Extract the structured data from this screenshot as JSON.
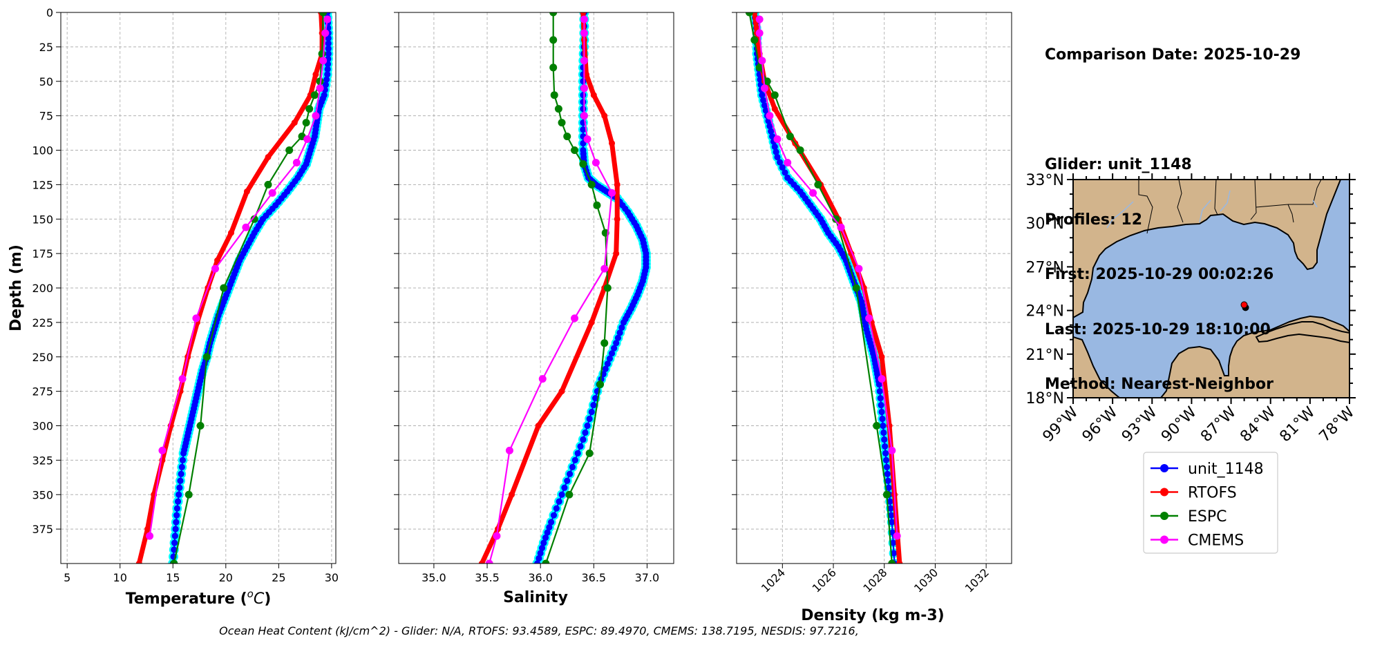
{
  "info": {
    "comparison_date": "Comparison Date: 2025-10-29",
    "glider": "Glider: unit_1148",
    "profiles": "Profiles: 12",
    "first": "First: 2025-10-29 00:02:26",
    "last": "Last: 2025-10-29 18:10:00",
    "method": "Method: Nearest-Neighbor"
  },
  "footer": "Ocean Heat Content (kJ/cm^2) - Glider: N/A,  RTOFS: 93.4589,  ESPC: 89.4970,  CMEMS: 138.7195,  NESDIS: 97.7216,",
  "colors": {
    "glider": "#0000ff",
    "glider_halo": "#00ffff",
    "rtofs": "#ff0000",
    "espc": "#008000",
    "cmems": "#ff00ff",
    "land": "#d2b48c",
    "water": "#99b8e2"
  },
  "chart_data": [
    {
      "type": "line",
      "xlabel": "Temperature (°C)",
      "ylabel": "Depth (m)",
      "xlim": [
        4.4,
        30.4
      ],
      "ylim": [
        400,
        0
      ],
      "xticks": [
        5,
        10,
        15,
        20,
        25,
        30
      ],
      "yticks": [
        0,
        25,
        50,
        75,
        100,
        125,
        150,
        175,
        200,
        225,
        250,
        275,
        300,
        325,
        350,
        375
      ],
      "grid": true,
      "series": [
        {
          "name": "unit_1148",
          "style": "glider",
          "x": [
            29.6,
            29.7,
            29.7,
            29.6,
            29.3,
            28.8,
            28.6,
            28.4,
            28.0,
            27.6,
            26.8,
            25.8,
            24.7,
            23.5,
            22.7,
            22.0,
            21.3,
            20.8,
            20.3,
            19.8,
            19.3,
            18.9,
            18.5,
            18.2,
            17.8,
            17.5,
            17.2,
            16.9,
            16.6,
            16.3,
            16.0,
            15.7,
            15.4,
            15.2,
            15.0
          ],
          "y": [
            0,
            15,
            30,
            45,
            60,
            70,
            80,
            90,
            100,
            110,
            120,
            130,
            140,
            150,
            160,
            170,
            180,
            190,
            200,
            210,
            220,
            230,
            240,
            250,
            260,
            270,
            280,
            290,
            300,
            310,
            320,
            340,
            360,
            380,
            400
          ]
        },
        {
          "name": "RTOFS",
          "style": "rtofs",
          "x": [
            29.0,
            29.1,
            29.1,
            28.5,
            28.0,
            26.5,
            24.0,
            22.0,
            20.5,
            19.2,
            18.3,
            17.3,
            16.4,
            15.7,
            14.8,
            14.0,
            13.2,
            12.6,
            11.8
          ],
          "y": [
            0,
            15,
            30,
            45,
            60,
            80,
            105,
            130,
            160,
            180,
            200,
            225,
            250,
            275,
            300,
            325,
            350,
            375,
            400
          ]
        },
        {
          "name": "ESPC",
          "style": "espc",
          "x": [
            29.2,
            29.1,
            28.9,
            28.4,
            27.9,
            27.6,
            27.2,
            26.0,
            24.0,
            22.7,
            19.8,
            18.2,
            17.6,
            16.5,
            15.1
          ],
          "y": [
            0,
            30,
            50,
            60,
            70,
            80,
            90,
            100,
            125,
            150,
            200,
            250,
            300,
            350,
            400
          ]
        },
        {
          "name": "CMEMS",
          "style": "cmems",
          "x": [
            29.6,
            29.4,
            29.2,
            28.9,
            28.5,
            27.7,
            26.7,
            24.4,
            21.9,
            19.0,
            17.2,
            15.9,
            14.0,
            12.8
          ],
          "y": [
            5,
            15,
            35,
            55,
            75,
            92,
            109,
            131,
            156,
            186,
            222,
            266,
            318,
            380
          ]
        }
      ]
    },
    {
      "type": "line",
      "xlabel": "Salinity",
      "ylabel": "",
      "xlim": [
        34.67,
        37.25
      ],
      "ylim": [
        400,
        0
      ],
      "xticks": [
        35.0,
        35.5,
        36.0,
        36.5,
        37.0
      ],
      "grid": true,
      "series": [
        {
          "name": "unit_1148",
          "style": "glider",
          "x": [
            36.41,
            36.41,
            36.4,
            36.4,
            36.4,
            36.4,
            36.41,
            36.45,
            36.52,
            36.62,
            36.72,
            36.82,
            36.9,
            36.96,
            36.99,
            36.99,
            36.96,
            36.91,
            36.85,
            36.78,
            36.71,
            36.63,
            36.55,
            36.48,
            36.4,
            36.3,
            36.2,
            36.1,
            36.03,
            35.97
          ],
          "y": [
            0,
            20,
            40,
            60,
            80,
            100,
            110,
            120,
            125,
            130,
            135,
            145,
            155,
            165,
            175,
            185,
            195,
            205,
            215,
            225,
            240,
            255,
            270,
            290,
            310,
            330,
            350,
            370,
            385,
            400
          ]
        },
        {
          "name": "RTOFS",
          "style": "rtofs",
          "x": [
            36.4,
            36.41,
            36.43,
            36.5,
            36.6,
            36.67,
            36.72,
            36.72,
            36.71,
            36.6,
            36.48,
            36.2,
            35.98,
            35.73,
            35.6,
            35.45
          ],
          "y": [
            0,
            20,
            45,
            60,
            75,
            95,
            125,
            150,
            175,
            200,
            225,
            275,
            300,
            350,
            375,
            400
          ]
        },
        {
          "name": "ESPC",
          "style": "espc",
          "x": [
            36.12,
            36.12,
            36.12,
            36.13,
            36.17,
            36.2,
            36.25,
            36.32,
            36.4,
            36.48,
            36.53,
            36.61,
            36.63,
            36.6,
            36.56,
            36.46,
            36.27,
            36.05
          ],
          "y": [
            0,
            20,
            40,
            60,
            70,
            80,
            90,
            100,
            110,
            125,
            140,
            160,
            200,
            240,
            270,
            320,
            350,
            400
          ]
        },
        {
          "name": "CMEMS",
          "style": "cmems",
          "x": [
            36.41,
            36.41,
            36.41,
            36.41,
            36.41,
            36.44,
            36.52,
            36.67,
            36.6,
            36.32,
            36.02,
            35.71,
            35.59,
            35.52
          ],
          "y": [
            5,
            15,
            35,
            55,
            75,
            92,
            109,
            131,
            186,
            222,
            266,
            318,
            380,
            400
          ]
        }
      ]
    },
    {
      "type": "line",
      "xlabel": "Density (kg m-3)",
      "ylabel": "",
      "xlim": [
        1022.2,
        1033.0
      ],
      "ylim": [
        400,
        0
      ],
      "xticks": [
        1024,
        1026,
        1028,
        1030,
        1032
      ],
      "grid": true,
      "series": [
        {
          "name": "unit_1148",
          "style": "glider",
          "x": [
            1022.9,
            1023.0,
            1023.0,
            1023.1,
            1023.2,
            1023.4,
            1023.6,
            1023.8,
            1024.2,
            1024.7,
            1025.1,
            1025.5,
            1025.8,
            1026.2,
            1026.5,
            1026.7,
            1026.9,
            1027.1,
            1027.2,
            1027.3,
            1027.45,
            1027.6,
            1027.7,
            1027.8,
            1027.9,
            1028.0,
            1028.1,
            1028.2,
            1028.3,
            1028.4
          ],
          "y": [
            0,
            15,
            30,
            45,
            60,
            75,
            90,
            105,
            120,
            130,
            140,
            150,
            160,
            170,
            180,
            190,
            200,
            210,
            220,
            230,
            240,
            250,
            260,
            270,
            290,
            310,
            330,
            350,
            370,
            400
          ]
        },
        {
          "name": "RTOFS",
          "style": "rtofs",
          "x": [
            1022.9,
            1023.0,
            1023.1,
            1023.3,
            1023.7,
            1024.5,
            1025.5,
            1026.2,
            1026.7,
            1027.2,
            1027.5,
            1027.9,
            1028.2,
            1028.4,
            1028.6
          ],
          "y": [
            0,
            15,
            30,
            50,
            70,
            95,
            125,
            150,
            175,
            200,
            225,
            250,
            300,
            350,
            400
          ]
        },
        {
          "name": "ESPC",
          "style": "espc",
          "x": [
            1022.7,
            1022.9,
            1023.1,
            1023.4,
            1023.7,
            1024.3,
            1024.7,
            1025.4,
            1026.1,
            1026.9,
            1027.7,
            1028.1,
            1028.3
          ],
          "y": [
            0,
            20,
            40,
            50,
            60,
            90,
            100,
            125,
            150,
            200,
            300,
            350,
            400
          ]
        },
        {
          "name": "CMEMS",
          "style": "cmems",
          "x": [
            1023.1,
            1023.1,
            1023.2,
            1023.3,
            1023.5,
            1023.8,
            1024.2,
            1025.2,
            1026.3,
            1027.0,
            1027.4,
            1027.9,
            1028.3,
            1028.5
          ],
          "y": [
            5,
            15,
            35,
            55,
            75,
            92,
            109,
            131,
            156,
            186,
            222,
            266,
            318,
            380
          ]
        }
      ]
    },
    {
      "type": "map",
      "lon_range": [
        -99,
        -78
      ],
      "lat_range": [
        18,
        33
      ],
      "xtick_labels": [
        "99°W",
        "96°W",
        "93°W",
        "90°W",
        "87°W",
        "84°W",
        "81°W",
        "78°W"
      ],
      "ytick_labels": [
        "33°N",
        "30°N",
        "27°N",
        "24°N",
        "21°N",
        "18°N"
      ],
      "glider_position": {
        "lon": -85.9,
        "lat": 24.2
      },
      "legend": [
        "unit_1148",
        "RTOFS",
        "ESPC",
        "CMEMS"
      ]
    }
  ]
}
